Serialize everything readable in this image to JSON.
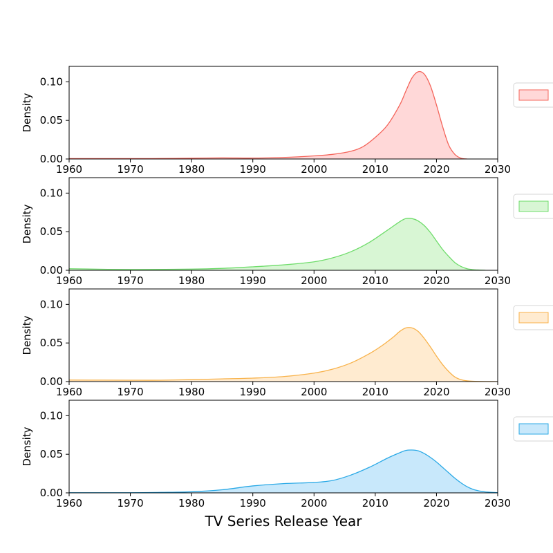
{
  "chart_data": {
    "type": "area",
    "xlabel": "TV Series Release Year",
    "ylabel": "Density",
    "xlim": [
      1960,
      2030
    ],
    "ylim": [
      0,
      0.12
    ],
    "x_ticks": [
      1960,
      1970,
      1980,
      1990,
      2000,
      2010,
      2020,
      2030
    ],
    "y_ticks": [
      0.0,
      0.05,
      0.1
    ],
    "legend": "right",
    "panels": [
      {
        "color": "#f4645a",
        "fill": "#ffd8d8",
        "x": [
          1960,
          1970,
          1975,
          1980,
          1985,
          1990,
          1995,
          2000,
          2003,
          2006,
          2008,
          2010,
          2012,
          2014,
          2015,
          2016,
          2017,
          2018,
          2019,
          2020,
          2021,
          2022,
          2023,
          2024,
          2025
        ],
        "y": [
          0.0005,
          0.0005,
          0.0006,
          0.001,
          0.0014,
          0.0012,
          0.002,
          0.004,
          0.006,
          0.01,
          0.016,
          0.028,
          0.044,
          0.07,
          0.088,
          0.105,
          0.113,
          0.11,
          0.095,
          0.07,
          0.042,
          0.018,
          0.006,
          0.001,
          0.0
        ]
      },
      {
        "color": "#6edc6a",
        "fill": "#d8f6d4",
        "x": [
          1960,
          1970,
          1980,
          1985,
          1990,
          1995,
          2000,
          2003,
          2006,
          2009,
          2012,
          2014,
          2015,
          2016,
          2017,
          2018,
          2019,
          2020,
          2021,
          2022,
          2023,
          2024,
          2025,
          2026,
          2027,
          2028
        ],
        "y": [
          0.002,
          0.001,
          0.0015,
          0.0025,
          0.0045,
          0.007,
          0.011,
          0.016,
          0.024,
          0.036,
          0.052,
          0.063,
          0.067,
          0.067,
          0.064,
          0.058,
          0.049,
          0.038,
          0.027,
          0.018,
          0.01,
          0.005,
          0.002,
          0.0008,
          0.0003,
          0.0
        ]
      },
      {
        "color": "#f8b24a",
        "fill": "#ffebd0",
        "x": [
          1960,
          1970,
          1975,
          1980,
          1985,
          1990,
          1995,
          2000,
          2003,
          2006,
          2009,
          2011,
          2013,
          2014,
          2015,
          2016,
          2017,
          2018,
          2019,
          2020,
          2021,
          2022,
          2023,
          2024,
          2025,
          2026,
          2028,
          2030
        ],
        "y": [
          0.002,
          0.0018,
          0.0018,
          0.0025,
          0.0035,
          0.0045,
          0.0065,
          0.011,
          0.016,
          0.024,
          0.036,
          0.046,
          0.058,
          0.065,
          0.0695,
          0.0695,
          0.065,
          0.056,
          0.045,
          0.033,
          0.022,
          0.013,
          0.006,
          0.0025,
          0.001,
          0.0004,
          0.0001,
          0.0
        ]
      },
      {
        "color": "#2aa9e6",
        "fill": "#c8e8fb",
        "x": [
          1960,
          1970,
          1975,
          1980,
          1985,
          1990,
          1995,
          2000,
          2003,
          2006,
          2009,
          2012,
          2014,
          2015,
          2016,
          2017,
          2018,
          2019,
          2020,
          2021,
          2022,
          2023,
          2024,
          2025,
          2026,
          2027,
          2028,
          2030
        ],
        "y": [
          0.0002,
          0.0002,
          0.0006,
          0.0014,
          0.004,
          0.009,
          0.012,
          0.0135,
          0.016,
          0.023,
          0.033,
          0.045,
          0.052,
          0.055,
          0.0555,
          0.0545,
          0.051,
          0.046,
          0.04,
          0.033,
          0.026,
          0.019,
          0.013,
          0.008,
          0.0045,
          0.0025,
          0.0012,
          0.0003
        ]
      }
    ]
  }
}
